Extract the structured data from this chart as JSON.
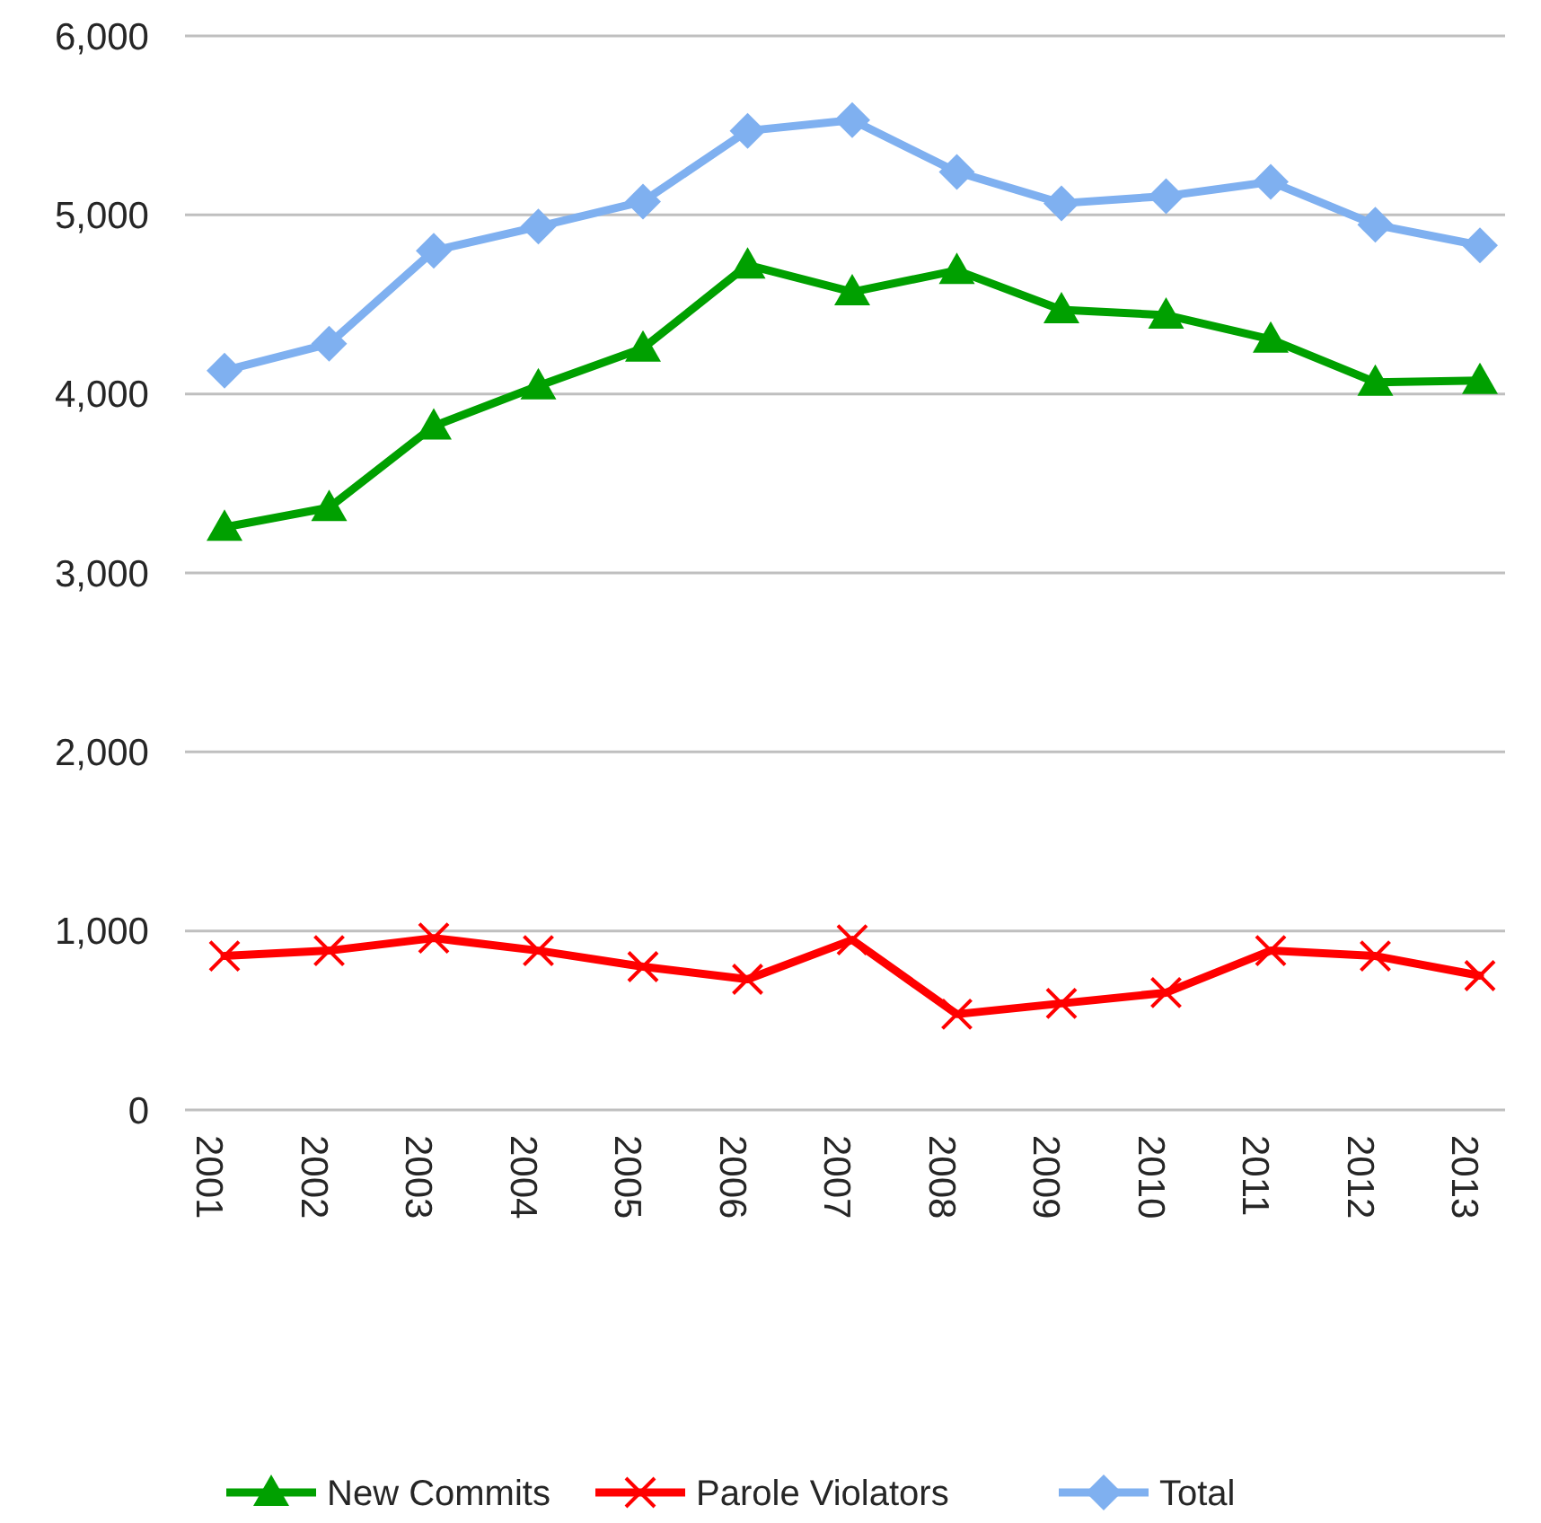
{
  "chart_data": {
    "type": "line",
    "categories": [
      "2001",
      "2002",
      "2003",
      "2004",
      "2005",
      "2006",
      "2007",
      "2008",
      "2009",
      "2010",
      "2011",
      "2012",
      "2013"
    ],
    "series": [
      {
        "name": "New Commits",
        "color": "#00a000",
        "marker": "triangle",
        "values": [
          3255,
          3365,
          3820,
          4045,
          4255,
          4720,
          4570,
          4690,
          4470,
          4440,
          4305,
          4065,
          4075
        ]
      },
      {
        "name": "Parole Violators",
        "color": "#ff0000",
        "marker": "cross",
        "values": [
          860,
          890,
          960,
          890,
          800,
          730,
          950,
          535,
          595,
          655,
          890,
          860,
          750
        ]
      },
      {
        "name": "Total",
        "color": "#7fb0f0",
        "marker": "diamond",
        "values": [
          4130,
          4280,
          4800,
          4935,
          5075,
          5470,
          5530,
          5240,
          5065,
          5105,
          5185,
          4945,
          4830
        ]
      }
    ],
    "ylim": [
      0,
      6000
    ],
    "yticks": [
      {
        "value": 0,
        "label": "0"
      },
      {
        "value": 1000,
        "label": "1,000"
      },
      {
        "value": 2000,
        "label": "2,000"
      },
      {
        "value": 3000,
        "label": "3,000"
      },
      {
        "value": 4000,
        "label": "4,000"
      },
      {
        "value": 5000,
        "label": "5,000"
      },
      {
        "value": 6000,
        "label": "6,000"
      }
    ],
    "grid": "y",
    "legend": "bottom",
    "line_style": "solid"
  }
}
